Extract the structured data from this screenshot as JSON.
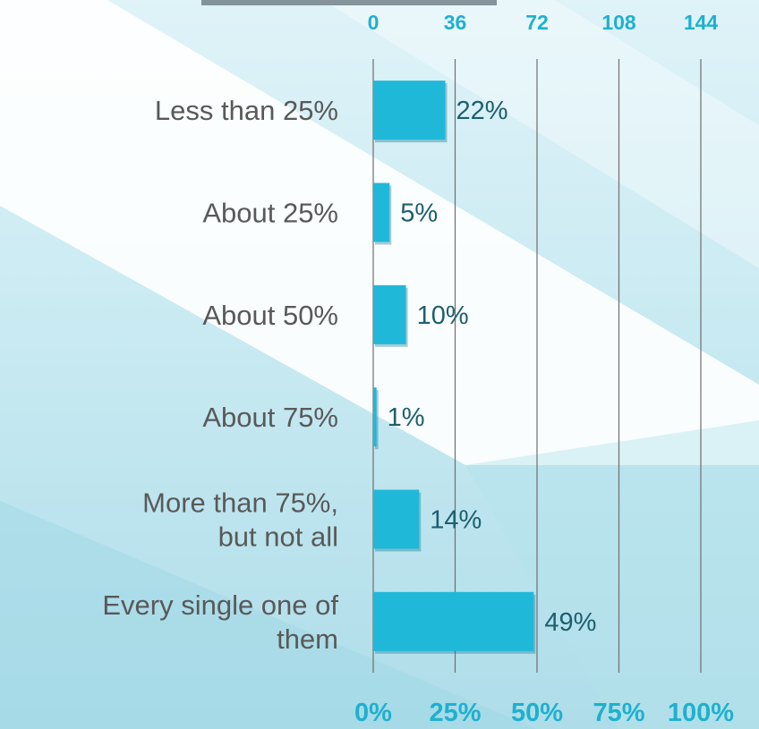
{
  "chart_data": {
    "type": "bar",
    "orientation": "horizontal",
    "categories": [
      [
        "Less than 25%"
      ],
      [
        "About 25%"
      ],
      [
        "About 50%"
      ],
      [
        "About 75%"
      ],
      [
        "More than 75%,",
        "but not all"
      ],
      [
        "Every single one of",
        "them"
      ]
    ],
    "values": [
      22,
      5,
      10,
      1,
      14,
      49
    ],
    "data_labels": [
      "22%",
      "5%",
      "10%",
      "1%",
      "14%",
      "49%"
    ],
    "xlim": [
      0,
      100
    ],
    "bottom_axis_ticks": [
      "0%",
      "25%",
      "50%",
      "75%",
      "100%"
    ],
    "top_axis_ticks": [
      "0",
      "36",
      "72",
      "108",
      "144"
    ],
    "grid": true,
    "colors": {
      "bar": "#1fb8d9",
      "tick_text": "#1fb0cf",
      "category_text": "#595959",
      "data_label_text": "#1d5f6e",
      "gridline": "#6f6f6f"
    }
  }
}
